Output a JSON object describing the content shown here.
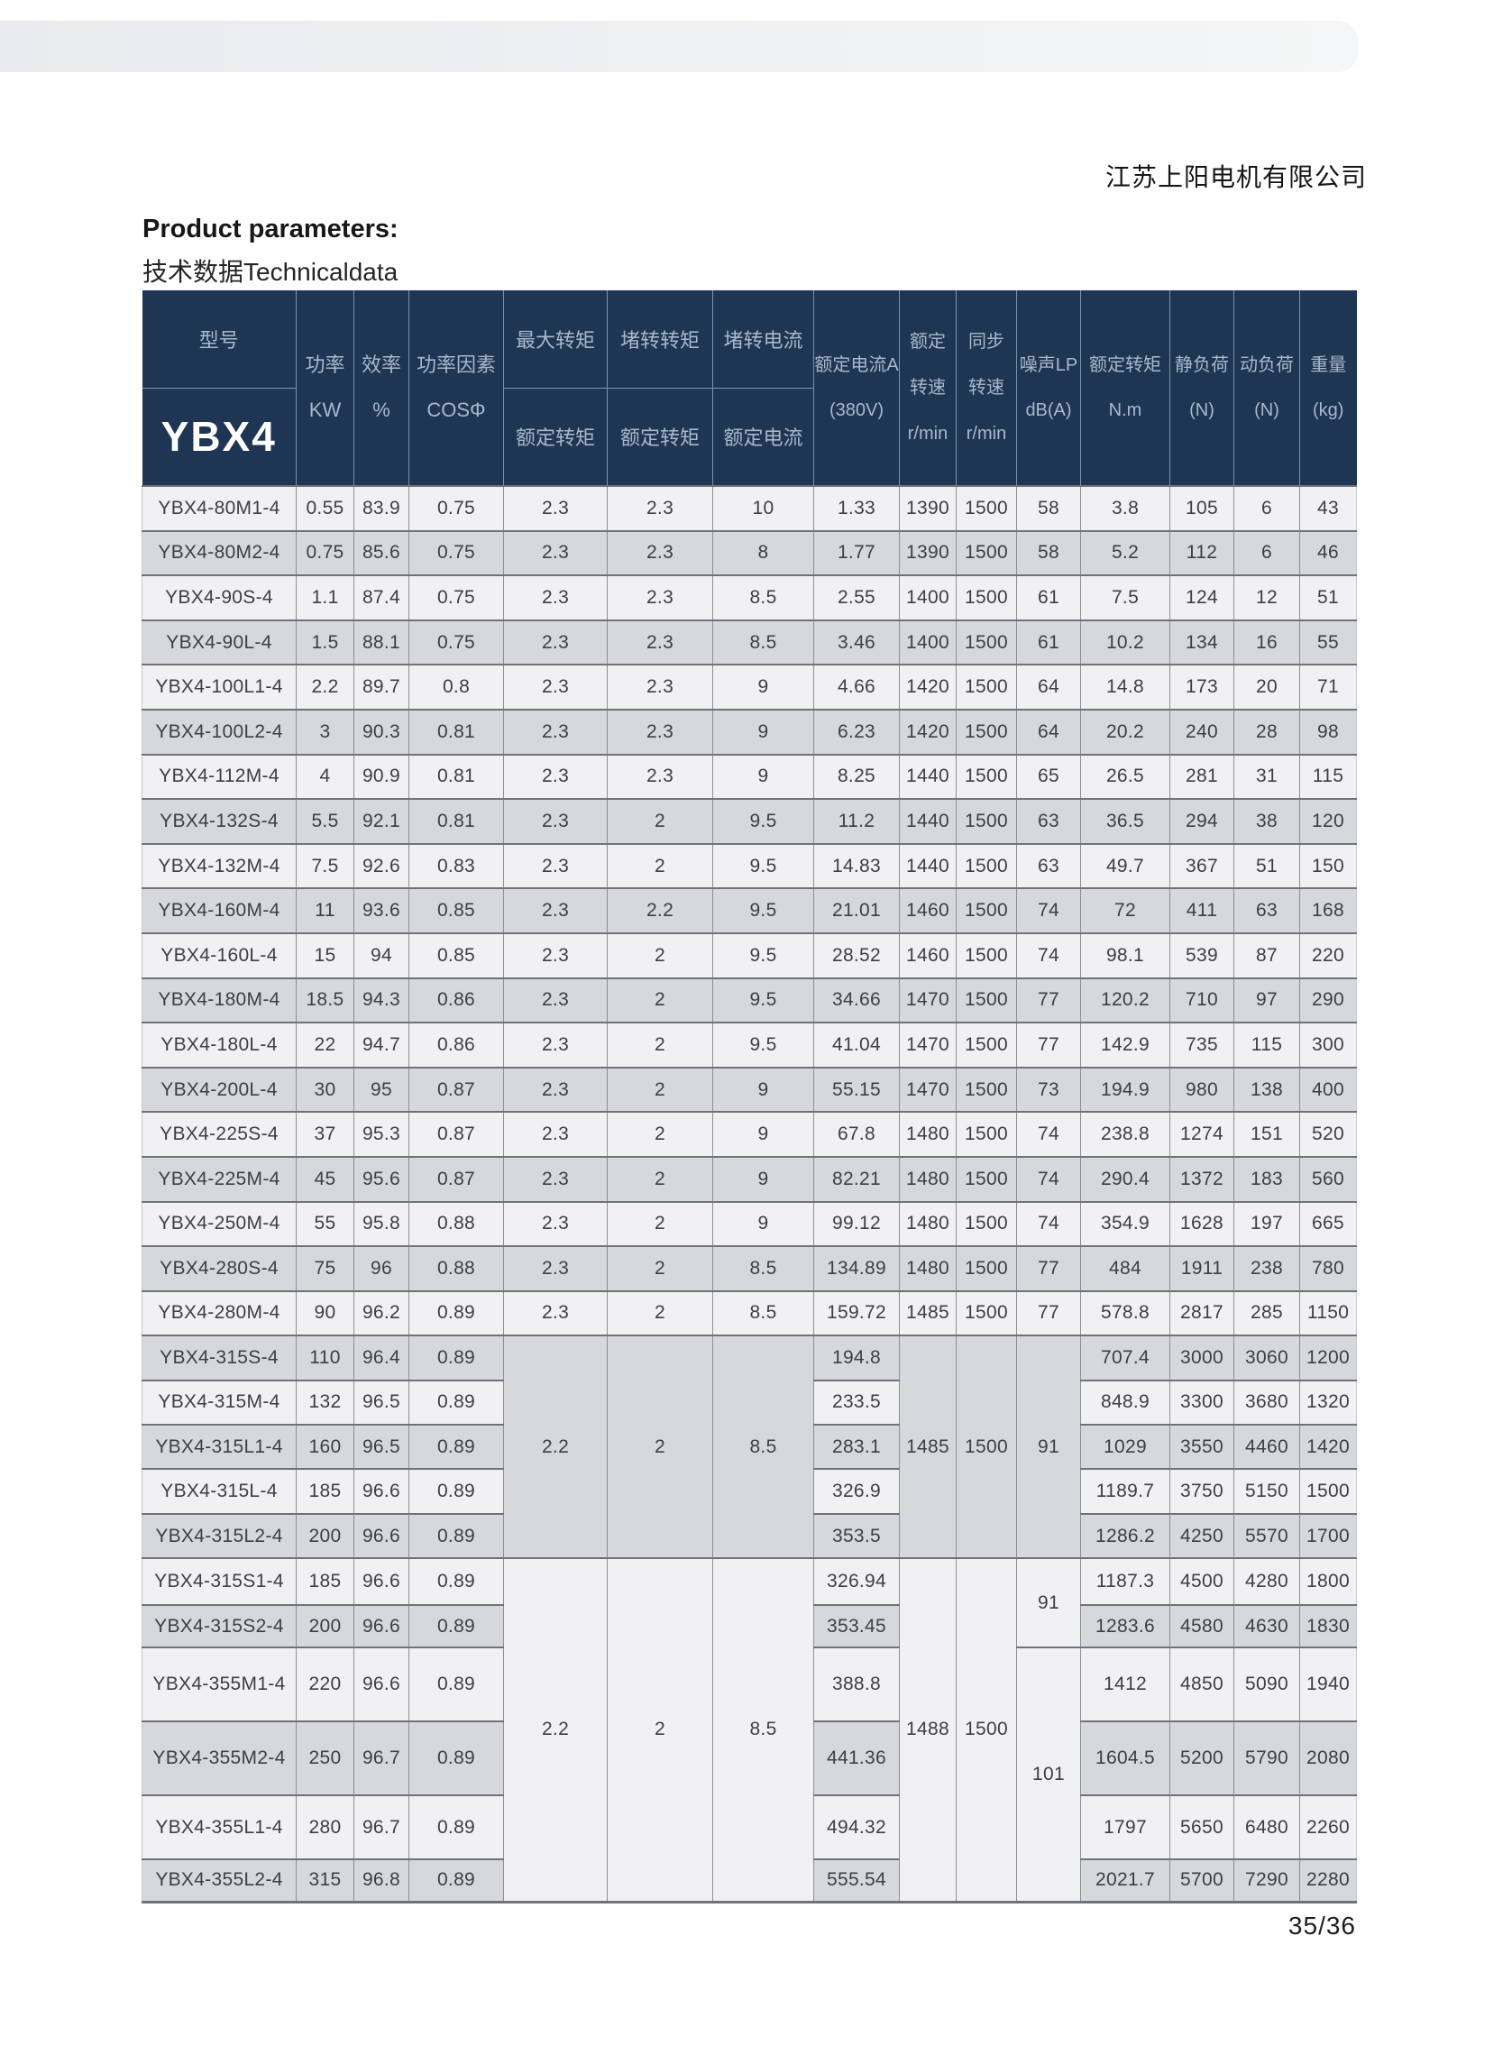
{
  "page": {
    "company_name": "江苏上阳电机有限公司",
    "title_en": "Product parameters:",
    "title_cn": "技术数据Technicaldata",
    "page_number": "35/36"
  },
  "colors": {
    "header_bg": "#1e3553",
    "header_text": "#a9b8cc",
    "header_series_text": "#ffffff",
    "row_light": "#f1f1f4",
    "row_gray": "#d7d8dc",
    "grid_line": "#6f7378",
    "topbar_bg": "#eff1f3"
  },
  "table": {
    "series_label": "YBX4",
    "columns": [
      {
        "id": "model",
        "top": "型号",
        "bottom": "YBX4"
      },
      {
        "id": "power-kw",
        "lines": [
          "功率",
          "KW"
        ]
      },
      {
        "id": "efficiency",
        "lines": [
          "效率",
          "%"
        ]
      },
      {
        "id": "power-factor",
        "lines": [
          "功率因素",
          "COSΦ"
        ]
      },
      {
        "id": "max-torque-ratio",
        "top": "最大转矩",
        "bottom": "额定转矩"
      },
      {
        "id": "locked-rotor-torque-ratio",
        "top": "堵转转矩",
        "bottom": "额定转矩"
      },
      {
        "id": "locked-rotor-current-ratio",
        "top": "堵转电流",
        "bottom": "额定电流"
      },
      {
        "id": "rated-current-380v",
        "lines": [
          "额定电流A",
          "(380V)"
        ]
      },
      {
        "id": "rated-speed",
        "lines": [
          "额定",
          "转速",
          "r/min"
        ]
      },
      {
        "id": "sync-speed",
        "lines": [
          "同步",
          "转速",
          "r/min"
        ]
      },
      {
        "id": "noise-lp",
        "lines": [
          "噪声LP",
          "dB(A)"
        ]
      },
      {
        "id": "rated-torque-nm",
        "lines": [
          "额定转矩",
          "N.m"
        ]
      },
      {
        "id": "static-load-n",
        "lines": [
          "静负荷",
          "(N)"
        ]
      },
      {
        "id": "dynamic-load-n",
        "lines": [
          "动负荷",
          "(N)"
        ]
      },
      {
        "id": "weight-kg",
        "lines": [
          "重量",
          "(kg)"
        ]
      }
    ],
    "rows": [
      [
        "YBX4-80M1-4",
        "0.55",
        "83.9",
        "0.75",
        "2.3",
        "2.3",
        "10",
        "1.33",
        "1390",
        "1500",
        "58",
        "3.8",
        "105",
        "6",
        "43"
      ],
      [
        "YBX4-80M2-4",
        "0.75",
        "85.6",
        "0.75",
        "2.3",
        "2.3",
        "8",
        "1.77",
        "1390",
        "1500",
        "58",
        "5.2",
        "112",
        "6",
        "46"
      ],
      [
        "YBX4-90S-4",
        "1.1",
        "87.4",
        "0.75",
        "2.3",
        "2.3",
        "8.5",
        "2.55",
        "1400",
        "1500",
        "61",
        "7.5",
        "124",
        "12",
        "51"
      ],
      [
        "YBX4-90L-4",
        "1.5",
        "88.1",
        "0.75",
        "2.3",
        "2.3",
        "8.5",
        "3.46",
        "1400",
        "1500",
        "61",
        "10.2",
        "134",
        "16",
        "55"
      ],
      [
        "YBX4-100L1-4",
        "2.2",
        "89.7",
        "0.8",
        "2.3",
        "2.3",
        "9",
        "4.66",
        "1420",
        "1500",
        "64",
        "14.8",
        "173",
        "20",
        "71"
      ],
      [
        "YBX4-100L2-4",
        "3",
        "90.3",
        "0.81",
        "2.3",
        "2.3",
        "9",
        "6.23",
        "1420",
        "1500",
        "64",
        "20.2",
        "240",
        "28",
        "98"
      ],
      [
        "YBX4-112M-4",
        "4",
        "90.9",
        "0.81",
        "2.3",
        "2.3",
        "9",
        "8.25",
        "1440",
        "1500",
        "65",
        "26.5",
        "281",
        "31",
        "115"
      ],
      [
        "YBX4-132S-4",
        "5.5",
        "92.1",
        "0.81",
        "2.3",
        "2",
        "9.5",
        "11.2",
        "1440",
        "1500",
        "63",
        "36.5",
        "294",
        "38",
        "120"
      ],
      [
        "YBX4-132M-4",
        "7.5",
        "92.6",
        "0.83",
        "2.3",
        "2",
        "9.5",
        "14.83",
        "1440",
        "1500",
        "63",
        "49.7",
        "367",
        "51",
        "150"
      ],
      [
        "YBX4-160M-4",
        "11",
        "93.6",
        "0.85",
        "2.3",
        "2.2",
        "9.5",
        "21.01",
        "1460",
        "1500",
        "74",
        "72",
        "411",
        "63",
        "168"
      ],
      [
        "YBX4-160L-4",
        "15",
        "94",
        "0.85",
        "2.3",
        "2",
        "9.5",
        "28.52",
        "1460",
        "1500",
        "74",
        "98.1",
        "539",
        "87",
        "220"
      ],
      [
        "YBX4-180M-4",
        "18.5",
        "94.3",
        "0.86",
        "2.3",
        "2",
        "9.5",
        "34.66",
        "1470",
        "1500",
        "77",
        "120.2",
        "710",
        "97",
        "290"
      ],
      [
        "YBX4-180L-4",
        "22",
        "94.7",
        "0.86",
        "2.3",
        "2",
        "9.5",
        "41.04",
        "1470",
        "1500",
        "77",
        "142.9",
        "735",
        "115",
        "300"
      ],
      [
        "YBX4-200L-4",
        "30",
        "95",
        "0.87",
        "2.3",
        "2",
        "9",
        "55.15",
        "1470",
        "1500",
        "73",
        "194.9",
        "980",
        "138",
        "400"
      ],
      [
        "YBX4-225S-4",
        "37",
        "95.3",
        "0.87",
        "2.3",
        "2",
        "9",
        "67.8",
        "1480",
        "1500",
        "74",
        "238.8",
        "1274",
        "151",
        "520"
      ],
      [
        "YBX4-225M-4",
        "45",
        "95.6",
        "0.87",
        "2.3",
        "2",
        "9",
        "82.21",
        "1480",
        "1500",
        "74",
        "290.4",
        "1372",
        "183",
        "560"
      ],
      [
        "YBX4-250M-4",
        "55",
        "95.8",
        "0.88",
        "2.3",
        "2",
        "9",
        "99.12",
        "1480",
        "1500",
        "74",
        "354.9",
        "1628",
        "197",
        "665"
      ],
      [
        "YBX4-280S-4",
        "75",
        "96",
        "0.88",
        "2.3",
        "2",
        "8.5",
        "134.89",
        "1480",
        "1500",
        "77",
        "484",
        "1911",
        "238",
        "780"
      ],
      [
        "YBX4-280M-4",
        "90",
        "96.2",
        "0.89",
        "2.3",
        "2",
        "8.5",
        "159.72",
        "1485",
        "1500",
        "77",
        "578.8",
        "2817",
        "285",
        "1150"
      ]
    ],
    "section_315": {
      "max_torque": "2.2",
      "locked_rotor_torque": "2",
      "locked_rotor_current": "8.5",
      "rated_speed": "1485",
      "sync_speed": "1500",
      "noise": "91",
      "rows": [
        [
          "YBX4-315S-4",
          "110",
          "96.4",
          "0.89",
          "194.8",
          "707.4",
          "3000",
          "3060",
          "1200"
        ],
        [
          "YBX4-315M-4",
          "132",
          "96.5",
          "0.89",
          "233.5",
          "848.9",
          "3300",
          "3680",
          "1320"
        ],
        [
          "YBX4-315L1-4",
          "160",
          "96.5",
          "0.89",
          "283.1",
          "1029",
          "3550",
          "4460",
          "1420"
        ],
        [
          "YBX4-315L-4",
          "185",
          "96.6",
          "0.89",
          "326.9",
          "1189.7",
          "3750",
          "5150",
          "1500"
        ],
        [
          "YBX4-315L2-4",
          "200",
          "96.6",
          "0.89",
          "353.5",
          "1286.2",
          "4250",
          "5570",
          "1700"
        ]
      ]
    },
    "section_355": {
      "max_torque": "2.2",
      "locked_rotor_torque": "2",
      "locked_rotor_current": "8.5",
      "rated_speed": "1488",
      "sync_speed": "1500",
      "noise_upper": "91",
      "noise_lower": "101",
      "rows": [
        [
          "YBX4-315S1-4",
          "185",
          "96.6",
          "0.89",
          "326.94",
          "1187.3",
          "4500",
          "4280",
          "1800"
        ],
        [
          "YBX4-315S2-4",
          "200",
          "96.6",
          "0.89",
          "353.45",
          "1283.6",
          "4580",
          "4630",
          "1830"
        ],
        [
          "YBX4-355M1-4",
          "220",
          "96.6",
          "0.89",
          "388.8",
          "1412",
          "4850",
          "5090",
          "1940"
        ],
        [
          "YBX4-355M2-4",
          "250",
          "96.7",
          "0.89",
          "441.36",
          "1604.5",
          "5200",
          "5790",
          "2080"
        ],
        [
          "YBX4-355L1-4",
          "280",
          "96.7",
          "0.89",
          "494.32",
          "1797",
          "5650",
          "6480",
          "2260"
        ],
        [
          "YBX4-355L2-4",
          "315",
          "96.8",
          "0.89",
          "555.54",
          "2021.7",
          "5700",
          "7290",
          "2280"
        ]
      ]
    }
  }
}
